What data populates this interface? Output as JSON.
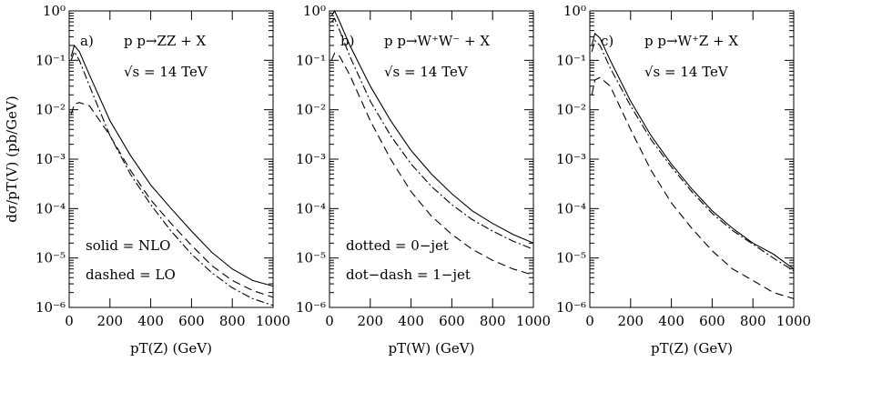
{
  "chart_data": [
    {
      "type": "line",
      "yscale": "log",
      "title": "p p→ZZ + X",
      "panel_label": "a)",
      "subtitle": "√s = 14 TeV",
      "xlabel": "pT(Z)  (GeV)",
      "ylabel": "dσ/pT(V)  (pb/GeV)",
      "annotations": [
        "solid = NLO",
        "dashed = LO"
      ],
      "xlim": [
        0,
        1000
      ],
      "xticks": [
        0,
        200,
        400,
        600,
        800,
        1000
      ],
      "ylim": [
        1e-06,
        1
      ],
      "yticks": [
        {
          "value": 1e-06,
          "label": "10⁻⁶"
        },
        {
          "value": 1e-05,
          "label": "10⁻⁵"
        },
        {
          "value": 0.0001,
          "label": "10⁻⁴"
        },
        {
          "value": 0.001,
          "label": "10⁻³"
        },
        {
          "value": 0.01,
          "label": "10⁻²"
        },
        {
          "value": 0.1,
          "label": "10⁻¹"
        },
        {
          "value": 1,
          "label": "10⁰"
        }
      ],
      "x": [
        10,
        25,
        50,
        100,
        200,
        300,
        400,
        500,
        600,
        700,
        800,
        900,
        1000
      ],
      "series": [
        {
          "line_style": "solid",
          "color": "#000000",
          "values": [
            0.12,
            0.2,
            0.15,
            0.05,
            0.006,
            0.0012,
            0.0003,
            0.0001,
            3.5e-05,
            1.3e-05,
            6e-06,
            3.5e-06,
            2.7e-06
          ]
        },
        {
          "line_style": "dashed",
          "color": "#000000",
          "values": [
            0.008,
            0.013,
            0.014,
            0.012,
            0.003,
            0.0006,
            0.00015,
            5e-05,
            1.8e-05,
            7e-06,
            3.5e-06,
            2.2e-06,
            1.6e-06
          ]
        },
        {
          "line_style": "dashdot",
          "color": "#000000",
          "values": [
            0.1,
            0.15,
            0.1,
            0.03,
            0.003,
            0.0005,
            0.00012,
            3.5e-05,
            1.2e-05,
            5e-06,
            2.5e-06,
            1.5e-06,
            1.1e-06
          ]
        }
      ]
    },
    {
      "type": "line",
      "yscale": "log",
      "title": "p p→W⁺W⁻ + X",
      "panel_label": "b)",
      "subtitle": "√s = 14 TeV",
      "xlabel": "pT(W)  (GeV)",
      "annotations": [
        "dotted = 0−jet",
        "dot−dash = 1−jet"
      ],
      "xlim": [
        0,
        1000
      ],
      "xticks": [
        0,
        200,
        400,
        600,
        800,
        1000
      ],
      "ylim": [
        1e-06,
        1
      ],
      "yticks": [
        {
          "value": 1e-06,
          "label": "10⁻⁶"
        },
        {
          "value": 1e-05,
          "label": "10⁻⁵"
        },
        {
          "value": 0.0001,
          "label": "10⁻⁴"
        },
        {
          "value": 0.001,
          "label": "10⁻³"
        },
        {
          "value": 0.01,
          "label": "10⁻²"
        },
        {
          "value": 0.1,
          "label": "10⁻¹"
        },
        {
          "value": 1,
          "label": "10⁰"
        }
      ],
      "x": [
        10,
        25,
        50,
        100,
        200,
        300,
        400,
        500,
        600,
        700,
        800,
        900,
        1000
      ],
      "series": [
        {
          "line_style": "solid",
          "color": "#000000",
          "values": [
            0.8,
            1,
            0.6,
            0.2,
            0.03,
            0.006,
            0.0015,
            0.0005,
            0.0002,
            9e-05,
            5e-05,
            3e-05,
            2e-05
          ]
        },
        {
          "line_style": "dashed",
          "color": "#000000",
          "values": [
            0.1,
            0.14,
            0.12,
            0.05,
            0.006,
            0.001,
            0.00022,
            7e-05,
            3e-05,
            1.5e-05,
            9e-06,
            6e-06,
            4.5e-06
          ]
        },
        {
          "line_style": "dashdot",
          "color": "#000000",
          "values": [
            0.6,
            0.7,
            0.4,
            0.12,
            0.015,
            0.003,
            0.0008,
            0.00028,
            0.00012,
            6e-05,
            3.5e-05,
            2.2e-05,
            1.5e-05
          ]
        }
      ]
    },
    {
      "type": "line",
      "yscale": "log",
      "title": "p p→W⁺Z + X",
      "panel_label": "c)",
      "subtitle": "√s = 14 TeV",
      "xlabel": "pT(Z)  (GeV)",
      "xlim": [
        0,
        1000
      ],
      "xticks": [
        0,
        200,
        400,
        600,
        800,
        1000
      ],
      "ylim": [
        1e-06,
        1
      ],
      "yticks": [
        {
          "value": 1e-06,
          "label": "10⁻⁶"
        },
        {
          "value": 1e-05,
          "label": "10⁻⁵"
        },
        {
          "value": 0.0001,
          "label": "10⁻⁴"
        },
        {
          "value": 0.001,
          "label": "10⁻³"
        },
        {
          "value": 0.01,
          "label": "10⁻²"
        },
        {
          "value": 0.1,
          "label": "10⁻¹"
        },
        {
          "value": 1,
          "label": "10⁰"
        }
      ],
      "x": [
        10,
        25,
        50,
        100,
        200,
        300,
        400,
        500,
        600,
        700,
        800,
        900,
        1000
      ],
      "series": [
        {
          "line_style": "solid",
          "color": "#000000",
          "values": [
            0.2,
            0.35,
            0.28,
            0.1,
            0.015,
            0.003,
            0.0008,
            0.00025,
            9e-05,
            4e-05,
            2e-05,
            1.2e-05,
            6e-06
          ]
        },
        {
          "line_style": "dashed",
          "color": "#000000",
          "values": [
            0.02,
            0.04,
            0.045,
            0.03,
            0.004,
            0.0006,
            0.00013,
            4e-05,
            1.4e-05,
            6e-06,
            3.5e-06,
            2e-06,
            1.5e-06
          ]
        },
        {
          "line_style": "dashdot",
          "color": "#000000",
          "values": [
            0.15,
            0.25,
            0.2,
            0.07,
            0.012,
            0.0025,
            0.0007,
            0.00022,
            8e-05,
            3.6e-05,
            1.9e-05,
            1e-05,
            5.5e-06
          ]
        }
      ]
    }
  ]
}
